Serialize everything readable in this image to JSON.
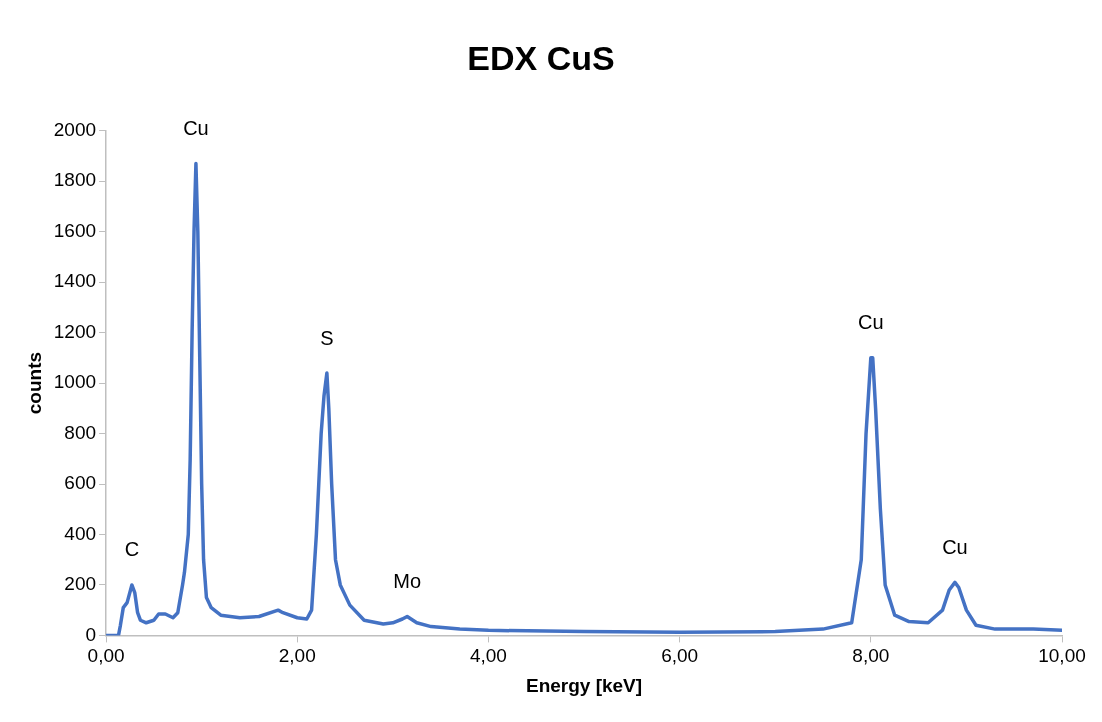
{
  "chart_data": {
    "type": "line",
    "title": "EDX CuS",
    "xlabel": "Energy [keV]",
    "ylabel": "counts",
    "x": [
      0,
      0.1,
      0.13,
      0.15,
      0.18,
      0.22,
      0.27,
      0.3,
      0.33,
      0.36,
      0.42,
      0.5,
      0.55,
      0.62,
      0.7,
      0.75,
      0.8,
      0.82,
      0.86,
      0.88,
      0.9,
      0.92,
      0.94,
      0.96,
      0.98,
      1.0,
      1.02,
      1.05,
      1.1,
      1.2,
      1.4,
      1.6,
      1.8,
      1.85,
      2.0,
      2.1,
      2.15,
      2.2,
      2.25,
      2.28,
      2.31,
      2.33,
      2.36,
      2.4,
      2.45,
      2.55,
      2.7,
      2.9,
      3.0,
      3.1,
      3.15,
      3.25,
      3.4,
      3.7,
      4,
      5,
      6,
      7,
      7.5,
      7.8,
      7.9,
      7.95,
      8.0,
      8.02,
      8.05,
      8.1,
      8.15,
      8.25,
      8.4,
      8.6,
      8.75,
      8.82,
      8.88,
      8.92,
      9.0,
      9.1,
      9.3,
      9.7,
      10
    ],
    "series": [
      {
        "color": "#4472c4",
        "values": [
          0,
          0,
          0,
          40,
          110,
          130,
          200,
          170,
          90,
          60,
          50,
          60,
          85,
          85,
          70,
          90,
          200,
          250,
          400,
          700,
          1200,
          1600,
          1870,
          1600,
          1100,
          600,
          300,
          150,
          110,
          80,
          70,
          75,
          100,
          90,
          70,
          65,
          100,
          400,
          800,
          950,
          1040,
          900,
          600,
          300,
          200,
          120,
          60,
          45,
          50,
          65,
          75,
          50,
          35,
          25,
          20,
          15,
          12,
          15,
          25,
          50,
          300,
          800,
          1100,
          1100,
          900,
          500,
          200,
          80,
          55,
          50,
          100,
          180,
          210,
          190,
          100,
          40,
          25,
          25,
          20
        ]
      }
    ],
    "xlim": [
      0,
      10
    ],
    "ylim": [
      0,
      2000
    ],
    "xticks": [
      {
        "value": 0,
        "label": "0,00"
      },
      {
        "value": 2,
        "label": "2,00"
      },
      {
        "value": 4,
        "label": "4,00"
      },
      {
        "value": 6,
        "label": "6,00"
      },
      {
        "value": 8,
        "label": "8,00"
      },
      {
        "value": 10,
        "label": "10,00"
      }
    ],
    "yticks": [
      0,
      200,
      400,
      600,
      800,
      1000,
      1200,
      1400,
      1600,
      1800,
      2000
    ],
    "grid": false,
    "legend": false,
    "marker": "none",
    "line_style": "solid",
    "annotations": [
      {
        "text": "C",
        "x": 0.27,
        "y": 200
      },
      {
        "text": "Cu",
        "x": 0.94,
        "y": 1870
      },
      {
        "text": "S",
        "x": 2.31,
        "y": 1040
      },
      {
        "text": "Mo",
        "x": 3.15,
        "y": 75
      },
      {
        "text": "Cu",
        "x": 8.0,
        "y": 1100
      },
      {
        "text": "Cu",
        "x": 8.88,
        "y": 210
      }
    ]
  }
}
